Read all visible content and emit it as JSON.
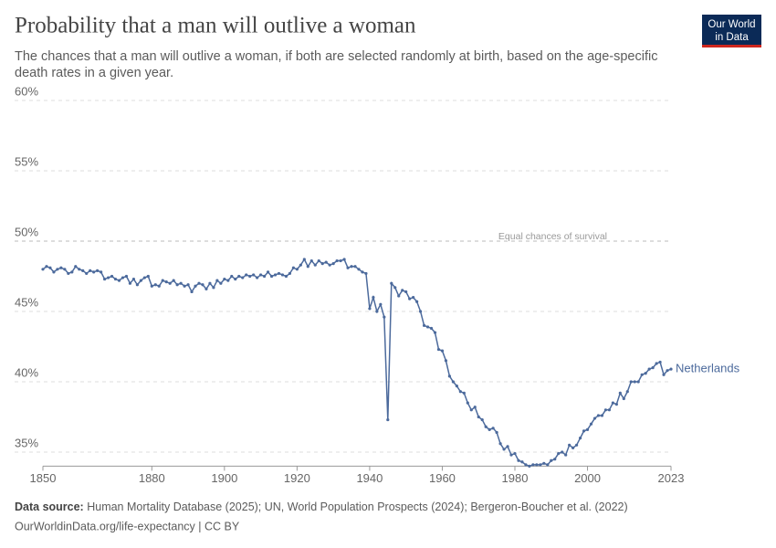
{
  "chart_data": {
    "type": "line",
    "title": "Probability that a man will outlive a woman",
    "subtitle": [
      "The chances that a man will outlive a woman, if both are selected randomly at birth, based on the age-specific",
      "death rates in a given year."
    ],
    "logo": [
      "Our World",
      "in Data"
    ],
    "source_label": "Data source:",
    "source": "Human Mortality Database (2025); UN, World Population Prospects (2024); Bergeron-Boucher et al. (2022)",
    "footer": "OurWorldinData.org/life-expectancy | CC BY",
    "annotation": {
      "value": 50,
      "label": "Equal chances of survival"
    },
    "xlim": [
      1850,
      2023
    ],
    "xticks": [
      1850,
      1880,
      1900,
      1920,
      1940,
      1960,
      1980,
      2000,
      2023
    ],
    "ylim": [
      34,
      60
    ],
    "yticks": [
      {
        "value": 35,
        "label": "35%"
      },
      {
        "value": 40,
        "label": "40%"
      },
      {
        "value": 45,
        "label": "45%"
      },
      {
        "value": 50,
        "label": "50%"
      },
      {
        "value": 55,
        "label": "55%"
      },
      {
        "value": 60,
        "label": "60%"
      }
    ],
    "grid": true,
    "x": [
      1850,
      1851,
      1852,
      1853,
      1854,
      1855,
      1856,
      1857,
      1858,
      1859,
      1860,
      1861,
      1862,
      1863,
      1864,
      1865,
      1866,
      1867,
      1868,
      1869,
      1870,
      1871,
      1872,
      1873,
      1874,
      1875,
      1876,
      1877,
      1878,
      1879,
      1880,
      1881,
      1882,
      1883,
      1884,
      1885,
      1886,
      1887,
      1888,
      1889,
      1890,
      1891,
      1892,
      1893,
      1894,
      1895,
      1896,
      1897,
      1898,
      1899,
      1900,
      1901,
      1902,
      1903,
      1904,
      1905,
      1906,
      1907,
      1908,
      1909,
      1910,
      1911,
      1912,
      1913,
      1914,
      1915,
      1916,
      1917,
      1918,
      1919,
      1920,
      1921,
      1922,
      1923,
      1924,
      1925,
      1926,
      1927,
      1928,
      1929,
      1930,
      1931,
      1932,
      1933,
      1934,
      1935,
      1936,
      1937,
      1938,
      1939,
      1940,
      1941,
      1942,
      1943,
      1944,
      1945,
      1946,
      1947,
      1948,
      1949,
      1950,
      1951,
      1952,
      1953,
      1954,
      1955,
      1956,
      1957,
      1958,
      1959,
      1960,
      1961,
      1962,
      1963,
      1964,
      1965,
      1966,
      1967,
      1968,
      1969,
      1970,
      1971,
      1972,
      1973,
      1974,
      1975,
      1976,
      1977,
      1978,
      1979,
      1980,
      1981,
      1982,
      1983,
      1984,
      1985,
      1986,
      1987,
      1988,
      1989,
      1990,
      1991,
      1992,
      1993,
      1994,
      1995,
      1996,
      1997,
      1998,
      1999,
      2000,
      2001,
      2002,
      2003,
      2004,
      2005,
      2006,
      2007,
      2008,
      2009,
      2010,
      2011,
      2012,
      2013,
      2014,
      2015,
      2016,
      2017,
      2018,
      2019,
      2020,
      2021,
      2022,
      2023
    ],
    "series": [
      {
        "name": "Netherlands",
        "color": "#4c6a9c",
        "values": [
          48.0,
          48.2,
          48.1,
          47.8,
          48.0,
          48.1,
          48.0,
          47.7,
          47.8,
          48.2,
          48.0,
          47.9,
          47.7,
          47.9,
          47.8,
          47.9,
          47.8,
          47.3,
          47.4,
          47.5,
          47.3,
          47.2,
          47.4,
          47.5,
          47.0,
          47.3,
          46.9,
          47.2,
          47.4,
          47.5,
          46.8,
          46.9,
          46.8,
          47.2,
          47.1,
          47.0,
          47.2,
          46.9,
          47.0,
          46.8,
          46.9,
          46.4,
          46.8,
          47.0,
          46.9,
          46.6,
          47.0,
          46.7,
          47.2,
          47.0,
          47.3,
          47.2,
          47.5,
          47.3,
          47.5,
          47.4,
          47.6,
          47.5,
          47.6,
          47.4,
          47.6,
          47.5,
          47.8,
          47.5,
          47.6,
          47.7,
          47.6,
          47.5,
          47.7,
          48.1,
          48.0,
          48.3,
          48.7,
          48.2,
          48.6,
          48.3,
          48.6,
          48.4,
          48.5,
          48.3,
          48.4,
          48.6,
          48.6,
          48.7,
          48.1,
          48.2,
          48.2,
          48.0,
          47.8,
          47.7,
          45.2,
          46.0,
          45.0,
          45.5,
          44.6,
          37.3,
          47.0,
          46.7,
          46.1,
          46.5,
          46.4,
          45.9,
          46.0,
          45.7,
          45.0,
          44.0,
          43.9,
          43.8,
          43.5,
          42.3,
          42.2,
          41.5,
          40.4,
          40.0,
          39.7,
          39.3,
          39.2,
          38.5,
          38.0,
          38.2,
          37.5,
          37.3,
          36.8,
          36.6,
          36.7,
          36.4,
          35.6,
          35.2,
          35.4,
          34.8,
          34.9,
          34.4,
          34.3,
          34.1,
          34.0,
          34.1,
          34.1,
          34.1,
          34.2,
          34.1,
          34.4,
          34.5,
          34.9,
          35.0,
          34.8,
          35.5,
          35.3,
          35.5,
          36.0,
          36.5,
          36.6,
          37.0,
          37.4,
          37.6,
          37.6,
          38.0,
          38.0,
          38.5,
          38.4,
          39.2,
          38.8,
          39.3,
          40.0,
          40.0,
          40.0,
          40.5,
          40.6,
          40.9,
          41.0,
          41.3,
          41.4,
          40.5,
          40.8,
          40.9
        ]
      }
    ]
  }
}
